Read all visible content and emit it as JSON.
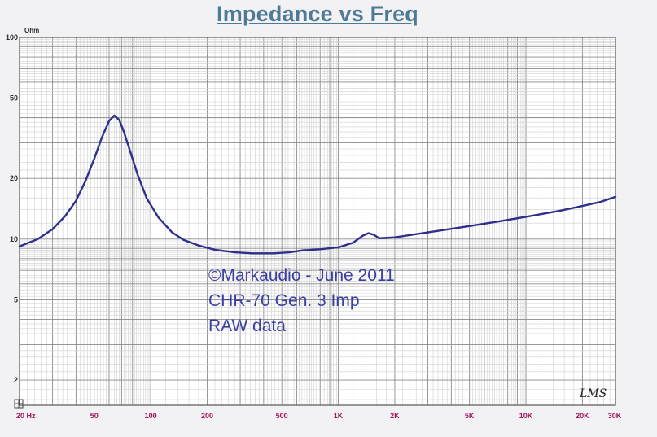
{
  "chart_data": {
    "type": "line",
    "title": "Impedance vs Freq",
    "ylabel_unit": "Ohm",
    "xscale": "log",
    "yscale": "log",
    "xlim": [
      20,
      30000
    ],
    "ylim": [
      1.5,
      100
    ],
    "grid": true,
    "x_ticks": [
      {
        "value": 20,
        "label": "20 Hz"
      },
      {
        "value": 50,
        "label": "50"
      },
      {
        "value": 100,
        "label": "100"
      },
      {
        "value": 200,
        "label": "200"
      },
      {
        "value": 500,
        "label": "500"
      },
      {
        "value": 1000,
        "label": "1K"
      },
      {
        "value": 2000,
        "label": "2K"
      },
      {
        "value": 5000,
        "label": "5K"
      },
      {
        "value": 10000,
        "label": "10K"
      },
      {
        "value": 20000,
        "label": "20K"
      },
      {
        "value": 30000,
        "label": "30K"
      }
    ],
    "y_ticks": [
      {
        "value": 100,
        "label": "100"
      },
      {
        "value": 50,
        "label": "50"
      },
      {
        "value": 20,
        "label": "20"
      },
      {
        "value": 10,
        "label": "10"
      },
      {
        "value": 5,
        "label": "5"
      },
      {
        "value": 2,
        "label": "2"
      }
    ],
    "series": [
      {
        "color": "#2e2e8c",
        "points": [
          [
            20,
            9.2
          ],
          [
            25,
            10.0
          ],
          [
            30,
            11.2
          ],
          [
            35,
            13.0
          ],
          [
            40,
            15.5
          ],
          [
            45,
            19.5
          ],
          [
            50,
            25.0
          ],
          [
            55,
            32.0
          ],
          [
            60,
            38.5
          ],
          [
            64,
            41.0
          ],
          [
            68,
            39.0
          ],
          [
            72,
            34.0
          ],
          [
            78,
            27.0
          ],
          [
            85,
            21.0
          ],
          [
            95,
            16.0
          ],
          [
            110,
            12.8
          ],
          [
            130,
            10.8
          ],
          [
            150,
            9.9
          ],
          [
            180,
            9.3
          ],
          [
            220,
            8.85
          ],
          [
            280,
            8.6
          ],
          [
            350,
            8.5
          ],
          [
            450,
            8.5
          ],
          [
            550,
            8.6
          ],
          [
            650,
            8.8
          ],
          [
            800,
            8.9
          ],
          [
            1000,
            9.1
          ],
          [
            1200,
            9.6
          ],
          [
            1350,
            10.4
          ],
          [
            1450,
            10.7
          ],
          [
            1550,
            10.5
          ],
          [
            1650,
            10.1
          ],
          [
            2000,
            10.2
          ],
          [
            3000,
            10.8
          ],
          [
            5000,
            11.6
          ],
          [
            7000,
            12.2
          ],
          [
            10000,
            12.9
          ],
          [
            15000,
            13.8
          ],
          [
            20000,
            14.6
          ],
          [
            25000,
            15.3
          ],
          [
            30000,
            16.2
          ]
        ]
      }
    ],
    "annotations": [
      "©Markaudio - June 2011",
      "CHR-70 Gen. 3  Imp",
      "RAW data"
    ],
    "logo_text": "LMS"
  }
}
